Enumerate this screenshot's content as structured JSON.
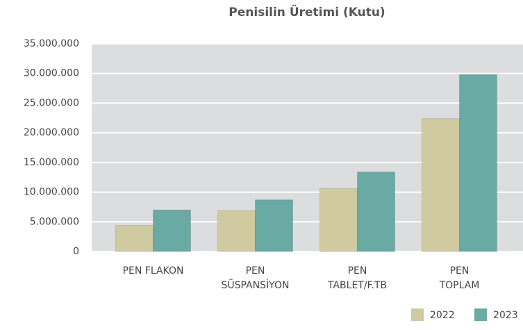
{
  "chart_data": {
    "type": "bar",
    "title": "Penisilin Üretimi (Kutu)",
    "categories": [
      [
        "PEN FLAKON"
      ],
      [
        "PEN",
        "SÜSPANSİYON"
      ],
      [
        "PEN",
        "TABLET/F.TB"
      ],
      [
        "PEN",
        "TOPLAM"
      ]
    ],
    "series": [
      {
        "name": "2022",
        "color": "#cfcaa0",
        "values": [
          4400000,
          6900000,
          10600000,
          22400000
        ]
      },
      {
        "name": "2023",
        "color": "#69aaa4",
        "values": [
          7000000,
          8700000,
          13400000,
          29800000
        ]
      }
    ],
    "ylim": [
      0,
      35000000
    ],
    "yticks": [
      0,
      {
        "value": 5000000,
        "label": "5.000.000"
      },
      {
        "value": 10000000,
        "label": "10.000.000"
      },
      {
        "value": 15000000,
        "label": "15.000.000"
      },
      {
        "value": 20000000,
        "label": "20.000.000"
      },
      {
        "value": 25000000,
        "label": "25.000.000"
      },
      {
        "value": 30000000,
        "label": "30.000.000"
      },
      {
        "value": 35000000,
        "label": "35.000.000"
      }
    ],
    "grid": true,
    "legend": "bottom-right"
  }
}
